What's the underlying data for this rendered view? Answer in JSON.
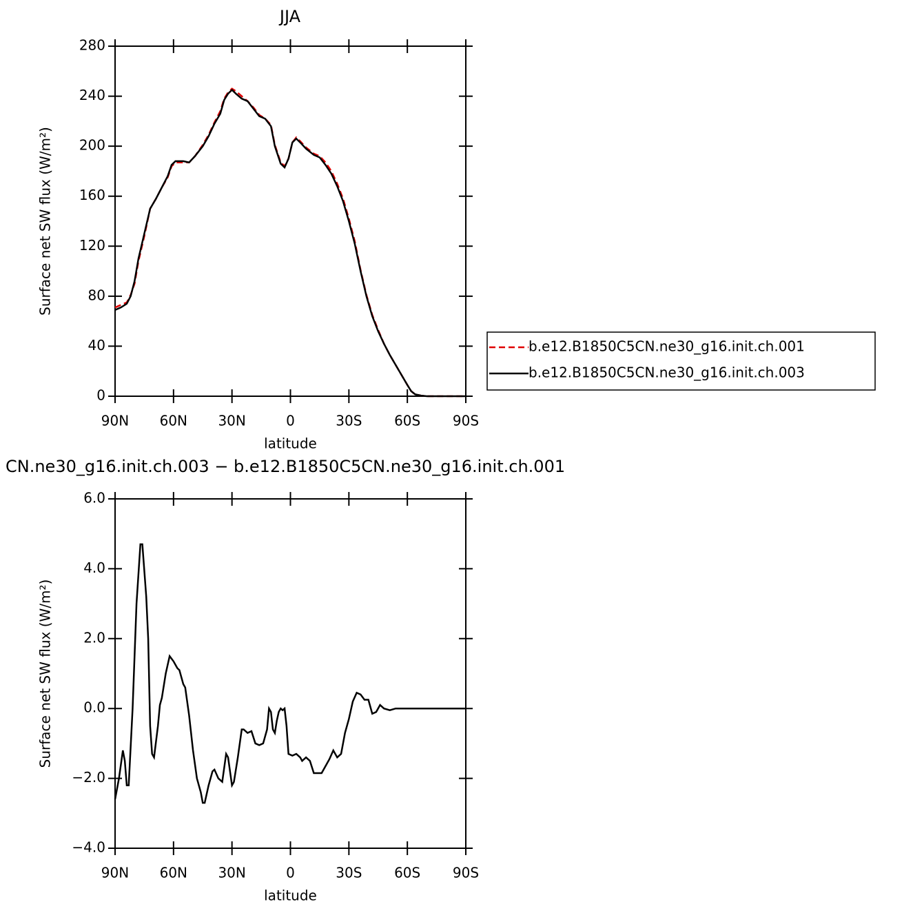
{
  "chart_data": [
    {
      "type": "line",
      "title": "JJA",
      "xlabel": "latitude",
      "ylabel": "Surface net SW flux (W/m²)",
      "x": [
        90,
        87,
        84,
        82,
        80,
        78,
        75,
        72,
        69,
        66,
        63,
        61,
        59,
        55,
        52,
        49,
        45,
        42,
        39,
        36,
        34,
        32,
        30,
        28,
        25,
        22,
        19,
        16,
        13,
        10,
        8,
        5,
        3,
        1,
        -1,
        -3,
        -5,
        -8,
        -12,
        -15,
        -18,
        -21,
        -24,
        -27,
        -30,
        -33,
        -36,
        -39,
        -42,
        -45,
        -48,
        -51,
        -54,
        -57,
        -60,
        -62,
        -64,
        -67,
        -70,
        -80,
        -90
      ],
      "series": [
        {
          "name": "b.e12.B1850C5CN.ne30_g16.init.ch.001",
          "color": "#e00000",
          "dash": true,
          "values": [
            71,
            73,
            75,
            81,
            90,
            108,
            128,
            150,
            158,
            167,
            175,
            184,
            187,
            187,
            187,
            192,
            201,
            209,
            219,
            228,
            238,
            243,
            246,
            244,
            240,
            236,
            231,
            225,
            222,
            217,
            201,
            187,
            184,
            190,
            203,
            207,
            204,
            199,
            194,
            192,
            187,
            180,
            170,
            158,
            142,
            124,
            101,
            81,
            65,
            53,
            42,
            33,
            25,
            17,
            9,
            4,
            1.5,
            0.5,
            0,
            0,
            0
          ]
        },
        {
          "name": "b.e12.B1850C5CN.ne30_g16.init.ch.003",
          "color": "#000000",
          "dash": false,
          "values": [
            69,
            71,
            74,
            80,
            92,
            110,
            130,
            150,
            158,
            167,
            176,
            185,
            188,
            188,
            187,
            192,
            200,
            208,
            218,
            226,
            237,
            242,
            245,
            242,
            238,
            236,
            230,
            224,
            222,
            216,
            200,
            186,
            183,
            190,
            203,
            206,
            203,
            198,
            193,
            191,
            185,
            178,
            168,
            156,
            140,
            122,
            100,
            80,
            64,
            52,
            42,
            33,
            25,
            17,
            9,
            4,
            1.5,
            0.5,
            0,
            0,
            0
          ]
        }
      ],
      "xlim": [
        90,
        -90
      ],
      "ylim": [
        0,
        280
      ],
      "xticks": [
        {
          "value": 90,
          "label": "90N"
        },
        {
          "value": 60,
          "label": "60N"
        },
        {
          "value": 30,
          "label": "30N"
        },
        0,
        {
          "value": -30,
          "label": "30S"
        },
        {
          "value": -60,
          "label": "60S"
        },
        {
          "value": -90,
          "label": "90S"
        }
      ],
      "yticks": [
        0,
        40,
        80,
        120,
        160,
        200,
        240,
        280
      ],
      "legend": "right"
    },
    {
      "type": "line",
      "title": "CN.ne30_g16.init.ch.003 − b.e12.B1850C5CN.ne30_g16.init.ch.001",
      "xlabel": "latitude",
      "ylabel": "Surface net SW flux (W/m²)",
      "x": [
        90,
        88,
        86,
        85,
        84,
        83,
        81,
        79,
        77,
        76,
        74,
        73,
        72,
        71,
        70,
        68,
        67,
        66,
        64,
        62,
        60,
        58,
        57,
        55,
        54,
        52,
        50,
        48,
        46,
        45,
        44,
        42,
        40,
        39,
        37,
        35,
        33,
        32,
        30,
        29,
        27,
        25,
        24,
        22,
        20,
        18,
        16,
        14,
        12,
        11,
        10,
        9,
        8,
        7,
        6,
        5,
        4,
        3,
        2,
        1,
        -1,
        -3,
        -5,
        -6,
        -8,
        -10,
        -12,
        -14,
        -16,
        -18,
        -20,
        -22,
        -24,
        -26,
        -28,
        -30,
        -32,
        -34,
        -36,
        -38,
        -40,
        -42,
        -44,
        -46,
        -48,
        -51,
        -54,
        -60,
        -90
      ],
      "series": [
        {
          "color": "#000000",
          "dash": false,
          "values": [
            -2.6,
            -2.0,
            -1.2,
            -1.5,
            -2.2,
            -2.2,
            0,
            3,
            4.7,
            4.7,
            3.2,
            2,
            -0.5,
            -1.3,
            -1.4,
            -0.5,
            0.1,
            0.3,
            1.0,
            1.5,
            1.35,
            1.15,
            1.1,
            0.7,
            0.6,
            -0.2,
            -1.2,
            -2.0,
            -2.4,
            -2.7,
            -2.7,
            -2.2,
            -1.8,
            -1.75,
            -2.0,
            -2.1,
            -1.3,
            -1.4,
            -2.2,
            -2.1,
            -1.4,
            -0.6,
            -0.6,
            -0.7,
            -0.65,
            -1.0,
            -1.05,
            -1.0,
            -0.6,
            0,
            -0.1,
            -0.6,
            -0.7,
            -0.35,
            -0.1,
            0,
            -0.05,
            0,
            -0.5,
            -1.3,
            -1.35,
            -1.3,
            -1.4,
            -1.5,
            -1.4,
            -1.5,
            -1.85,
            -1.85,
            -1.85,
            -1.65,
            -1.45,
            -1.2,
            -1.4,
            -1.3,
            -0.7,
            -0.3,
            0.2,
            0.45,
            0.4,
            0.25,
            0.25,
            -0.15,
            -0.1,
            0.1,
            0,
            -0.05,
            0,
            0,
            0
          ]
        }
      ],
      "xlim": [
        90,
        -90
      ],
      "ylim": [
        -4,
        6
      ],
      "xticks": [
        {
          "value": 90,
          "label": "90N"
        },
        {
          "value": 60,
          "label": "60N"
        },
        {
          "value": 30,
          "label": "30N"
        },
        0,
        {
          "value": -30,
          "label": "30S"
        },
        {
          "value": -60,
          "label": "60S"
        },
        {
          "value": -90,
          "label": "90S"
        }
      ],
      "yticks": [
        {
          "value": -4,
          "label": "−4.0"
        },
        {
          "value": -2,
          "label": "−2.0"
        },
        {
          "value": 0,
          "label": "0.0"
        },
        {
          "value": 2,
          "label": "2.0"
        },
        {
          "value": 4,
          "label": "4.0"
        },
        {
          "value": 6,
          "label": "6.0"
        }
      ]
    }
  ]
}
